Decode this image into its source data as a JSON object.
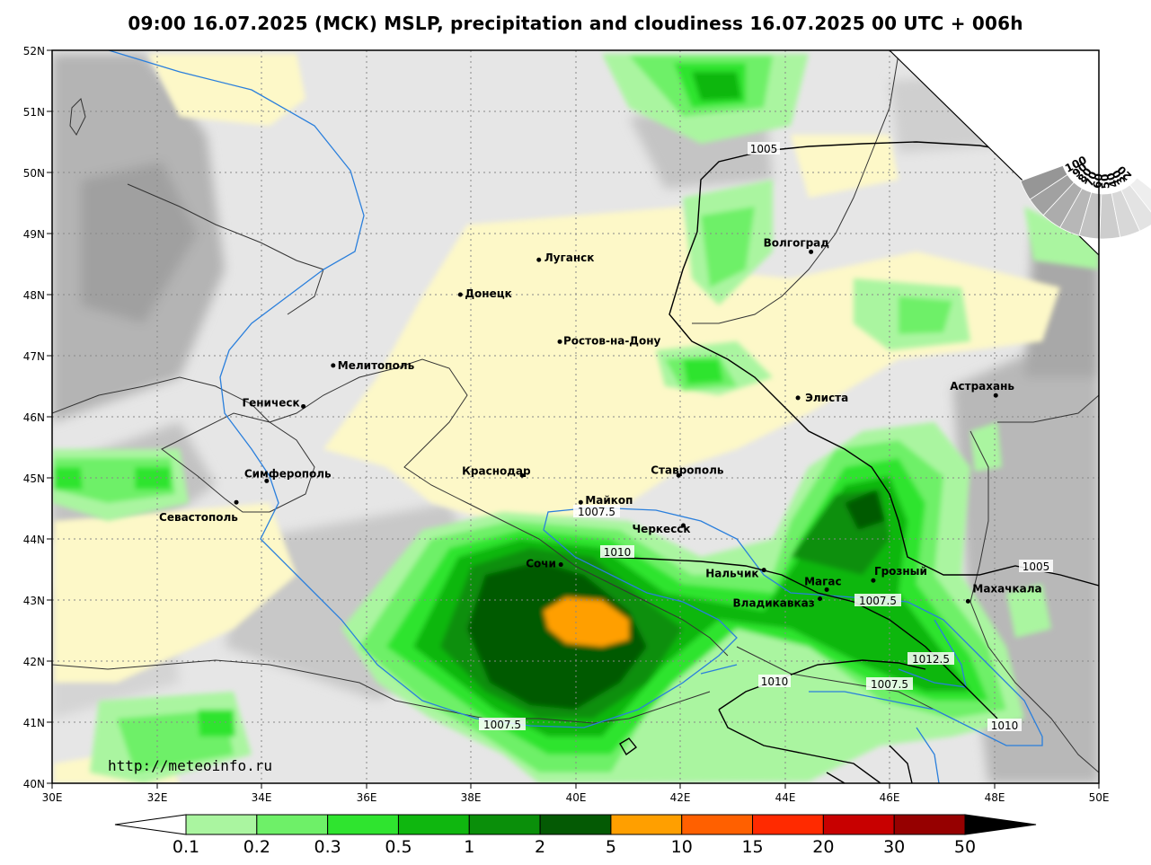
{
  "title": "09:00 16.07.2025 (МСК) MSLP, precipitation and cloudiness 16.07.2025 00 UTC + 006h",
  "watermark": "http://meteoinfo.ru",
  "lat_ticks": [
    "52N",
    "51N",
    "50N",
    "49N",
    "48N",
    "47N",
    "46N",
    "45N",
    "44N",
    "43N",
    "42N",
    "41N",
    "40N"
  ],
  "lon_ticks": [
    "30E",
    "32E",
    "34E",
    "36E",
    "38E",
    "40E",
    "42E",
    "44E",
    "46E",
    "48E",
    "50E"
  ],
  "legend": {
    "labels": [
      "0.1",
      "0.2",
      "0.3",
      "0.5",
      "1",
      "2",
      "5",
      "10",
      "15",
      "20",
      "30",
      "50"
    ],
    "colors": [
      "#aaf5a0",
      "#6ef068",
      "#2fe42f",
      "#0fb70f",
      "#0a8f0a",
      "#045a04",
      "#ff9f00",
      "#ff6000",
      "#ff2a00",
      "#c80000",
      "#960000",
      "#000000"
    ]
  },
  "cloud_scale": [
    "100",
    "90",
    "80",
    "70",
    "60",
    "50",
    "40",
    "30",
    "20"
  ],
  "cities": [
    {
      "name": "Луганск",
      "lon": 39.3,
      "lat": 48.57
    },
    {
      "name": "Донецк",
      "lon": 37.8,
      "lat": 48.0
    },
    {
      "name": "Ростов-на-Дону",
      "lon": 39.7,
      "lat": 47.23
    },
    {
      "name": "Мелитополь",
      "lon": 35.37,
      "lat": 46.84
    },
    {
      "name": "Геническ",
      "lon": 34.8,
      "lat": 46.17
    },
    {
      "name": "Симферополь",
      "lon": 34.1,
      "lat": 44.95
    },
    {
      "name": "Севастополь",
      "lon": 33.52,
      "lat": 44.6
    },
    {
      "name": "Краснодар",
      "lon": 38.98,
      "lat": 45.04
    },
    {
      "name": "Майкоп",
      "lon": 40.1,
      "lat": 44.6
    },
    {
      "name": "Ставрополь",
      "lon": 41.97,
      "lat": 45.04
    },
    {
      "name": "Черкесск",
      "lon": 42.06,
      "lat": 44.22
    },
    {
      "name": "Сочи",
      "lon": 39.72,
      "lat": 43.58
    },
    {
      "name": "Нальчик",
      "lon": 43.6,
      "lat": 43.49
    },
    {
      "name": "Магас",
      "lon": 44.8,
      "lat": 43.17
    },
    {
      "name": "Владикавказ",
      "lon": 44.67,
      "lat": 43.02
    },
    {
      "name": "Грозный",
      "lon": 45.69,
      "lat": 43.32
    },
    {
      "name": "Махачкала",
      "lon": 47.5,
      "lat": 42.98
    },
    {
      "name": "Элиста",
      "lon": 44.25,
      "lat": 46.31
    },
    {
      "name": "Астрахань",
      "lon": 48.03,
      "lat": 46.35
    },
    {
      "name": "Волгоград",
      "lon": 44.5,
      "lat": 48.7
    }
  ],
  "isobar_labels": [
    "1005",
    "1007.5",
    "1010",
    "1005",
    "1007.5",
    "1012.5",
    "1007.5",
    "1010",
    "1010",
    "1007.5"
  ]
}
